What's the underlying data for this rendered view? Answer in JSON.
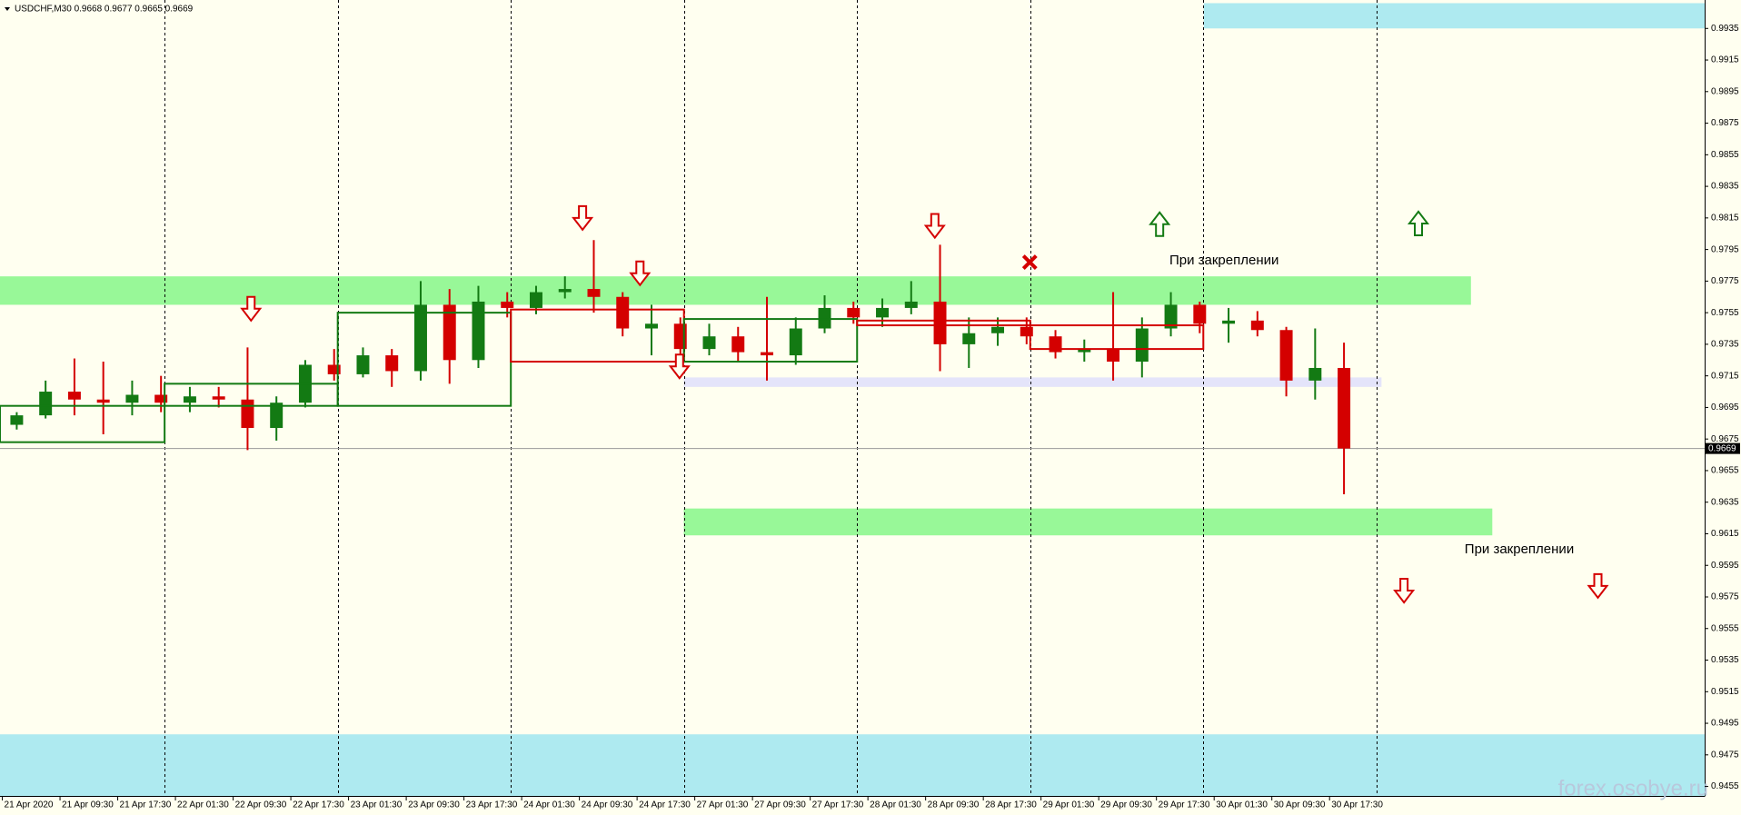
{
  "chart_data": {
    "type": "candlestick",
    "title": "USDCHF,M30 0.9668 0.9677 0.9665 0.9669",
    "watermark": "forex.osobye.ru",
    "up_color": "#137a13",
    "down_color": "#d40000",
    "xlim": [
      -0.58,
      58.5
    ],
    "ylim": [
      0.9449,
      0.9953
    ],
    "yticks": [
      0.9935,
      0.9915,
      0.9895,
      0.9875,
      0.9855,
      0.9835,
      0.9815,
      0.9795,
      0.9775,
      0.9755,
      0.9735,
      0.9715,
      0.9695,
      0.9675,
      0.9655,
      0.9635,
      0.9615,
      0.9595,
      0.9575,
      0.9555,
      0.9535,
      0.9515,
      0.9495,
      0.9475,
      0.9455
    ],
    "xticks": [
      {
        "value": -0.5,
        "label": "21 Apr 2020"
      },
      {
        "value": 1.5,
        "label": "21 Apr 09:30"
      },
      {
        "value": 3.5,
        "label": "21 Apr 17:30"
      },
      {
        "value": 5.5,
        "label": "22 Apr 01:30"
      },
      {
        "value": 7.5,
        "label": "22 Apr 09:30"
      },
      {
        "value": 9.5,
        "label": "22 Apr 17:30"
      },
      {
        "value": 11.5,
        "label": "23 Apr 01:30"
      },
      {
        "value": 13.5,
        "label": "23 Apr 09:30"
      },
      {
        "value": 15.5,
        "label": "23 Apr 17:30"
      },
      {
        "value": 17.5,
        "label": "24 Apr 01:30"
      },
      {
        "value": 19.5,
        "label": "24 Apr 09:30"
      },
      {
        "value": 21.5,
        "label": "24 Apr 17:30"
      },
      {
        "value": 23.5,
        "label": "27 Apr 01:30"
      },
      {
        "value": 25.5,
        "label": "27 Apr 09:30"
      },
      {
        "value": 27.5,
        "label": "27 Apr 17:30"
      },
      {
        "value": 29.5,
        "label": "28 Apr 01:30"
      },
      {
        "value": 31.5,
        "label": "28 Apr 09:30"
      },
      {
        "value": 33.5,
        "label": "28 Apr 17:30"
      },
      {
        "value": 35.5,
        "label": "29 Apr 01:30"
      },
      {
        "value": 37.5,
        "label": "29 Apr 09:30"
      },
      {
        "value": 39.5,
        "label": "29 Apr 17:30"
      },
      {
        "value": 41.5,
        "label": "30 Apr 01:30"
      },
      {
        "value": 43.5,
        "label": "30 Apr 09:30"
      },
      {
        "value": 45.5,
        "label": "30 Apr 17:30"
      }
    ],
    "period_separators": [
      5.125,
      11.125,
      17.125,
      23.125,
      29.125,
      35.125,
      41.125,
      47.125
    ],
    "candles": {
      "open": [
        0.9684,
        0.969,
        0.9705,
        0.97,
        0.9698,
        0.9703,
        0.9698,
        0.9702,
        0.97,
        0.9682,
        0.9698,
        0.9722,
        0.9716,
        0.9728,
        0.9718,
        0.976,
        0.9725,
        0.9762,
        0.9758,
        0.9768,
        0.977,
        0.9765,
        0.9745,
        0.9748,
        0.9732,
        0.974,
        0.973,
        0.9728,
        0.9745,
        0.9758,
        0.9752,
        0.9758,
        0.9762,
        0.9735,
        0.9742,
        0.9746,
        0.974,
        0.973,
        0.9732,
        0.9724,
        0.9745,
        0.976,
        0.9748,
        0.975,
        0.9744,
        0.9712,
        0.972
      ],
      "high": [
        0.9692,
        0.9712,
        0.9726,
        0.9724,
        0.9712,
        0.9715,
        0.9708,
        0.9708,
        0.9733,
        0.9702,
        0.9725,
        0.9732,
        0.9733,
        0.9732,
        0.9775,
        0.977,
        0.9772,
        0.9768,
        0.9772,
        0.9778,
        0.9801,
        0.9768,
        0.976,
        0.9752,
        0.9748,
        0.9746,
        0.9765,
        0.9752,
        0.9766,
        0.9762,
        0.9764,
        0.9775,
        0.9798,
        0.9752,
        0.9752,
        0.9752,
        0.9744,
        0.9738,
        0.9768,
        0.9752,
        0.9768,
        0.9762,
        0.9758,
        0.9756,
        0.9746,
        0.9745,
        0.9736
      ],
      "low": [
        0.9681,
        0.9688,
        0.969,
        0.9678,
        0.969,
        0.9692,
        0.9692,
        0.9695,
        0.9668,
        0.9674,
        0.9695,
        0.9712,
        0.9714,
        0.9708,
        0.9712,
        0.971,
        0.972,
        0.9752,
        0.9754,
        0.9764,
        0.9755,
        0.974,
        0.9728,
        0.9722,
        0.9728,
        0.9724,
        0.9712,
        0.9722,
        0.9742,
        0.9748,
        0.9746,
        0.9754,
        0.9718,
        0.972,
        0.9734,
        0.9735,
        0.9726,
        0.9724,
        0.9712,
        0.9714,
        0.974,
        0.9742,
        0.9736,
        0.974,
        0.9702,
        0.97,
        0.964
      ],
      "close": [
        0.969,
        0.9705,
        0.97,
        0.9698,
        0.9703,
        0.9698,
        0.9702,
        0.97,
        0.9682,
        0.9698,
        0.9722,
        0.9716,
        0.9728,
        0.9718,
        0.976,
        0.9725,
        0.9762,
        0.9758,
        0.9768,
        0.977,
        0.9765,
        0.9745,
        0.9748,
        0.9732,
        0.974,
        0.973,
        0.9728,
        0.9745,
        0.9758,
        0.9752,
        0.9758,
        0.9762,
        0.9735,
        0.9742,
        0.9746,
        0.974,
        0.973,
        0.9732,
        0.9724,
        0.9745,
        0.976,
        0.9748,
        0.975,
        0.9744,
        0.9712,
        0.972,
        0.9669
      ]
    },
    "last_price": 0.9669,
    "zones": [
      {
        "x": [
          41.14,
          58.5
        ],
        "y": [
          0.9935,
          0.9951
        ],
        "color": "#aeeaf0"
      },
      {
        "x": [
          -0.58,
          58.5
        ],
        "y": [
          0.9449,
          0.9488
        ],
        "color": "#aeeaf0"
      },
      {
        "x": [
          -0.58,
          50.4
        ],
        "y": [
          0.976,
          0.9778
        ],
        "color": "#98f898"
      },
      {
        "x": [
          23.12,
          51.14
        ],
        "y": [
          0.9614,
          0.9631
        ],
        "color": "#98f898"
      },
      {
        "x": [
          23.12,
          47.3
        ],
        "y": [
          0.9708,
          0.9714
        ],
        "color": "#e4e4fa"
      }
    ],
    "boxes": [
      {
        "x": [
          -0.58,
          5.125
        ],
        "y": [
          0.9673,
          0.9696
        ],
        "color": "#137a13"
      },
      {
        "x": [
          5.125,
          11.125
        ],
        "y": [
          0.9696,
          0.971
        ],
        "color": "#137a13"
      },
      {
        "x": [
          11.125,
          17.125
        ],
        "y": [
          0.9696,
          0.9755
        ],
        "color": "#137a13"
      },
      {
        "x": [
          17.125,
          23.125
        ],
        "y": [
          0.9724,
          0.9757
        ],
        "color": "#d40000"
      },
      {
        "x": [
          23.125,
          29.125
        ],
        "y": [
          0.9724,
          0.9751
        ],
        "color": "#137a13"
      },
      {
        "x": [
          29.125,
          35.125
        ],
        "y": [
          0.9747,
          0.975
        ],
        "color": "#d40000"
      },
      {
        "x": [
          35.125,
          41.125
        ],
        "y": [
          0.9732,
          0.9747
        ],
        "color": "#d40000"
      }
    ],
    "arrows": [
      {
        "dir": "down",
        "x": 8.12,
        "y": 0.97575
      },
      {
        "dir": "down",
        "x": 19.61,
        "y": 0.9815
      },
      {
        "dir": "down",
        "x": 21.6,
        "y": 0.978
      },
      {
        "dir": "down",
        "x": 22.97,
        "y": 0.9721
      },
      {
        "dir": "down",
        "x": 31.82,
        "y": 0.981
      },
      {
        "dir": "down",
        "x": 48.08,
        "y": 0.9579
      },
      {
        "dir": "down",
        "x": 54.8,
        "y": 0.9582
      },
      {
        "dir": "up",
        "x": 39.61,
        "y": 0.9811
      },
      {
        "dir": "up",
        "x": 48.58,
        "y": 0.98115
      },
      {
        "dir": "cross",
        "x": 35.11,
        "y": 0.9787
      }
    ],
    "annotations": [
      {
        "text": "При закреплении",
        "x": 39.95,
        "y": 0.9788
      },
      {
        "text": "При закреплении",
        "x": 50.18,
        "y": 0.9605
      }
    ]
  }
}
